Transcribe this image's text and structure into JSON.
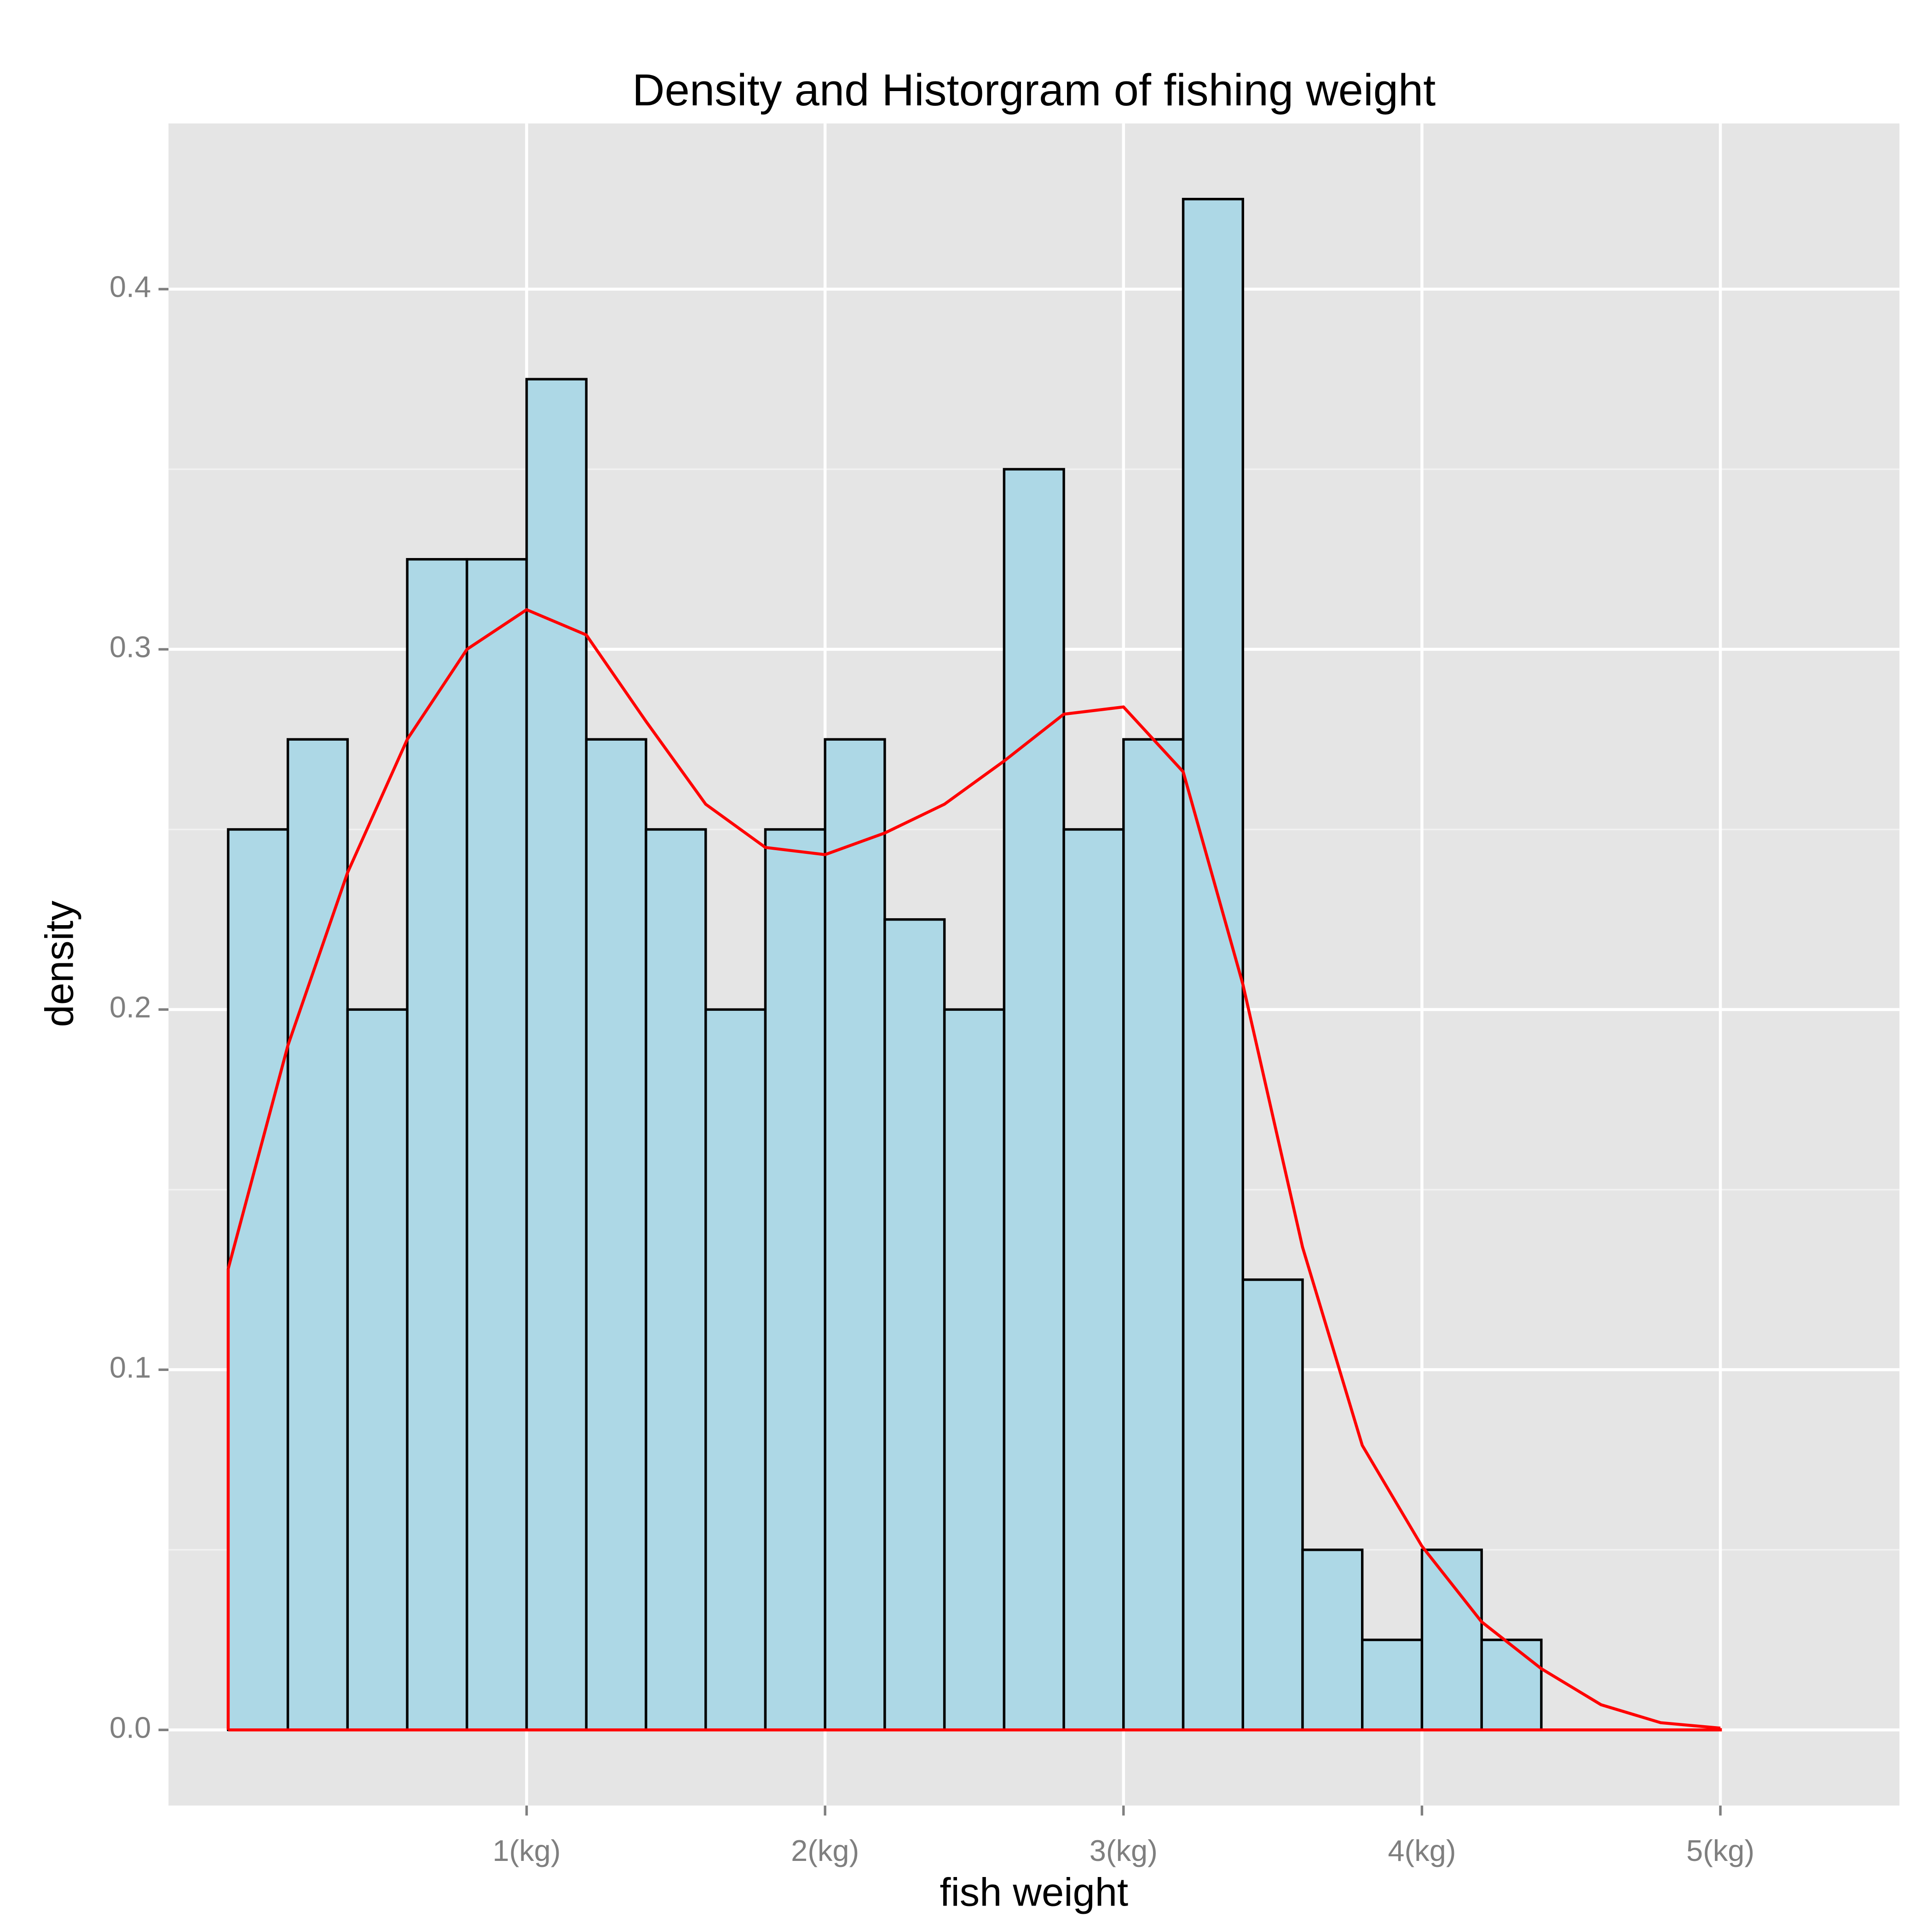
{
  "chart_data": {
    "type": "histogram",
    "title": "Density and Historgram of fishing weight",
    "x_label": "fish weight",
    "y_label": "density",
    "bins": [
      -0.2,
      0,
      0.2,
      0.4,
      0.6,
      0.8,
      1.0,
      1.2,
      1.4,
      1.6,
      1.8,
      2.0,
      2.2,
      2.4,
      2.6,
      2.8,
      3.0,
      3.2,
      3.4,
      3.6,
      3.8,
      4.0,
      4.2,
      4.4,
      4.6,
      4.8,
      5.0,
      5.2
    ],
    "values": [
      0,
      0.25,
      0.275,
      0.2,
      0.325,
      0.325,
      0.375,
      0.275,
      0.25,
      0.2,
      0.25,
      0.275,
      0.225,
      0.2,
      0.35,
      0.25,
      0.275,
      0.425,
      0.125,
      0.05,
      0.025,
      0.05,
      0.025,
      0,
      0,
      0,
      0
    ],
    "color": "#add8e6",
    "edge_color": "#000000",
    "density": {
      "color": "#ff0000",
      "x": [
        0,
        0.2,
        0.4,
        0.6,
        0.8,
        1.0,
        1.2,
        1.4,
        1.6,
        1.8,
        2.0,
        2.2,
        2.4,
        2.6,
        2.8,
        3.0,
        3.2,
        3.4,
        3.6,
        3.8,
        4.0,
        4.2,
        4.4,
        4.6,
        4.8,
        5.0
      ],
      "values": [
        0.128,
        0.19,
        0.238,
        0.275,
        0.3,
        0.311,
        0.304,
        0.28,
        0.257,
        0.245,
        0.243,
        0.249,
        0.257,
        0.269,
        0.282,
        0.284,
        0.266,
        0.207,
        0.134,
        0.079,
        0.051,
        0.03,
        0.017,
        0.007,
        0.002,
        0.0005
      ]
    },
    "xlim": [
      -0.2,
      5.6
    ],
    "ylim": [
      -0.021,
      0.446
    ],
    "xticks": [
      {
        "value": 1,
        "label": "1(kg)"
      },
      {
        "value": 2,
        "label": "2(kg)"
      },
      {
        "value": 3,
        "label": "3(kg)"
      },
      {
        "value": 4,
        "label": "4(kg)"
      },
      {
        "value": 5,
        "label": "5(kg)"
      }
    ],
    "yticks": [
      {
        "value": 0,
        "label": "0.0"
      },
      0.1,
      0.2,
      0.3,
      0.4
    ],
    "y_minor_ticks": [
      0.05,
      0.15,
      0.25,
      0.35
    ],
    "grid": true
  }
}
